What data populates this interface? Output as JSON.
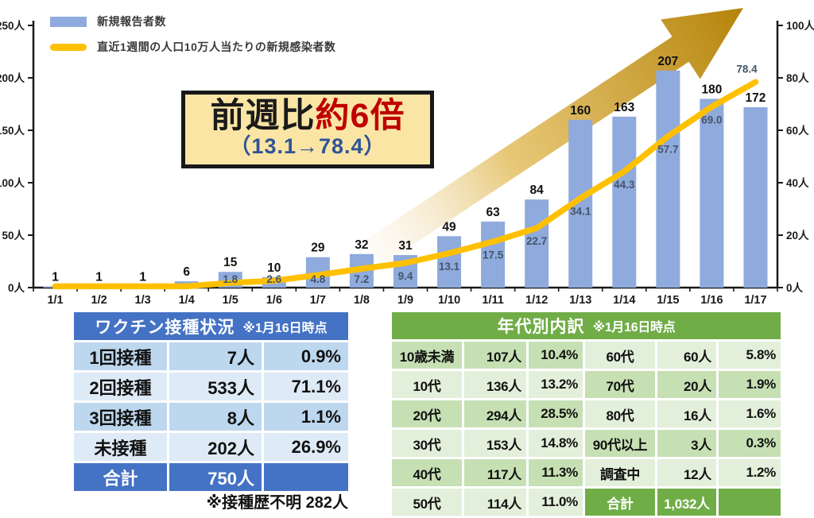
{
  "legend": {
    "bar_label": "新規報告者数",
    "line_label": "直近1週間の人口10万人当たりの新規感染者数"
  },
  "callout": {
    "prefix": "前週比",
    "highlight": "約6倍",
    "sub": "（13.1→78.4）"
  },
  "chart_data": {
    "type": "bar",
    "categories": [
      "1/1",
      "1/2",
      "1/3",
      "1/4",
      "1/5",
      "1/6",
      "1/7",
      "1/8",
      "1/9",
      "1/10",
      "1/11",
      "1/12",
      "1/13",
      "1/14",
      "1/15",
      "1/16",
      "1/17"
    ],
    "series": [
      {
        "name": "新規報告者数",
        "type": "bar",
        "axis": "left",
        "values": [
          1,
          1,
          1,
          6,
          15,
          10,
          29,
          32,
          31,
          49,
          63,
          84,
          160,
          163,
          207,
          180,
          172
        ]
      },
      {
        "name": "直近1週間の人口10万人当たりの新規感染者数",
        "type": "line",
        "axis": "right",
        "values": [
          null,
          null,
          null,
          null,
          1.8,
          2.6,
          4.8,
          7.2,
          9.4,
          13.1,
          17.5,
          22.7,
          34.1,
          44.3,
          57.7,
          69,
          78.4
        ],
        "labels": [
          "",
          "",
          "",
          "",
          "1.8",
          "2.6",
          "4.8",
          "7.2",
          "9.4",
          "13.1",
          "17.5",
          "22.7",
          "34.1",
          "44.3",
          "57.7",
          "69.0",
          "78.4"
        ]
      }
    ],
    "left_axis": {
      "ticks": [
        "0人",
        "50人",
        "100人",
        "150人",
        "200人",
        "250人"
      ],
      "min": 0,
      "max": 250
    },
    "right_axis": {
      "ticks": [
        "0人",
        "20人",
        "40人",
        "60人",
        "80人",
        "100人"
      ],
      "min": 0,
      "max": 100
    },
    "annotation": "前週比約6倍（13.1→78.4）",
    "legend_position": "top-left",
    "grid": false
  },
  "vaccine_table": {
    "title": "ワクチン接種状況",
    "note": "※1月16日時点",
    "rows": [
      [
        "1回接種",
        "7人",
        "0.9%"
      ],
      [
        "2回接種",
        "533人",
        "71.1%"
      ],
      [
        "3回接種",
        "8人",
        "1.1%"
      ],
      [
        "未接種",
        "202人",
        "26.9%"
      ],
      [
        "合計",
        "750人",
        ""
      ]
    ],
    "footnote": "※接種歴不明 282人"
  },
  "age_table": {
    "title": "年代別内訳",
    "note": "※1月16日時点",
    "rows": [
      [
        "10歳未満",
        "107人",
        "10.4%",
        "60代",
        "60人",
        "5.8%"
      ],
      [
        "10代",
        "136人",
        "13.2%",
        "70代",
        "20人",
        "1.9%"
      ],
      [
        "20代",
        "294人",
        "28.5%",
        "80代",
        "16人",
        "1.6%"
      ],
      [
        "30代",
        "153人",
        "14.8%",
        "90代以上",
        "3人",
        "0.3%"
      ],
      [
        "40代",
        "117人",
        "11.3%",
        "調査中",
        "12人",
        "1.2%"
      ],
      [
        "50代",
        "114人",
        "11.0%",
        "合計",
        "1,032人",
        ""
      ]
    ]
  },
  "colors": {
    "bar": "#8FAADC",
    "line": "#FFC000",
    "line_label": "#44546A",
    "axis": "#1a1a1a",
    "blue_header": "#4472C4",
    "blue_row_a": "#BDD7EE",
    "blue_row_b": "#DEEBF7",
    "green_header": "#70AD47",
    "green_row_a": "#C6E0B4",
    "green_row_b": "#E2EFDA",
    "callout_bg": "#FAE5A5",
    "callout_red": "#C00000",
    "callout_sub": "#2F5496",
    "arrow_pale": "#F8EEDC",
    "arrow_mid": "#E3BE5F",
    "arrow_dark": "#B5830A"
  }
}
